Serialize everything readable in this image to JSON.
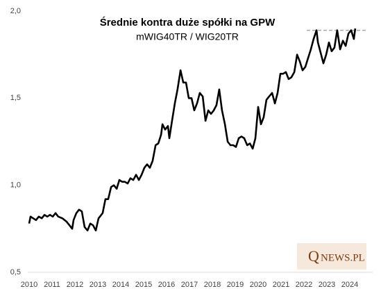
{
  "chart_data": {
    "type": "line",
    "title": "Średnie kontra duże spółki na GPW",
    "subtitle": "mWIG40TR / WIG20TR",
    "logo": {
      "initial": "Q",
      "rest": "NEWS.PL"
    },
    "xlim": [
      2010,
      2025
    ],
    "xticks": [
      2010,
      2011,
      2012,
      2013,
      2014,
      2015,
      2016,
      2017,
      2018,
      2019,
      2020,
      2021,
      2022,
      2023,
      2024
    ],
    "ylim": [
      0.5,
      2.0
    ],
    "yticks": [
      {
        "value": 0.5,
        "label": "0,5"
      },
      {
        "value": 1.0,
        "label": "1,0"
      },
      {
        "value": 1.5,
        "label": "1,5"
      },
      {
        "value": 2.0,
        "label": "2,0"
      }
    ],
    "reference_line": {
      "value": 1.89,
      "x": [
        2022.12,
        2024.73
      ],
      "color": "#a6a6a6"
    },
    "series": [
      {
        "name": "mWIG40TR / WIG20TR",
        "color": "#000000",
        "x": [
          2010.0,
          2010.06,
          2010.18,
          2010.3,
          2010.42,
          2010.55,
          2010.67,
          2010.79,
          2010.91,
          2011.03,
          2011.15,
          2011.27,
          2011.45,
          2011.64,
          2011.76,
          2011.88,
          2011.94,
          2012.06,
          2012.18,
          2012.3,
          2012.42,
          2012.55,
          2012.67,
          2012.79,
          2012.91,
          2013.03,
          2013.21,
          2013.33,
          2013.45,
          2013.58,
          2013.7,
          2013.82,
          2013.94,
          2014.06,
          2014.18,
          2014.3,
          2014.42,
          2014.55,
          2014.67,
          2014.79,
          2014.91,
          2015.03,
          2015.15,
          2015.27,
          2015.39,
          2015.52,
          2015.64,
          2015.76,
          2015.82,
          2015.94,
          2016.06,
          2016.12,
          2016.24,
          2016.36,
          2016.48,
          2016.61,
          2016.73,
          2016.85,
          2016.97,
          2017.09,
          2017.21,
          2017.33,
          2017.45,
          2017.58,
          2017.7,
          2017.82,
          2017.94,
          2018.06,
          2018.18,
          2018.3,
          2018.42,
          2018.55,
          2018.67,
          2018.79,
          2018.91,
          2019.03,
          2019.15,
          2019.27,
          2019.39,
          2019.52,
          2019.64,
          2019.76,
          2019.88,
          2020.0,
          2020.12,
          2020.24,
          2020.36,
          2020.48,
          2020.61,
          2020.73,
          2020.85,
          2020.97,
          2021.09,
          2021.21,
          2021.33,
          2021.45,
          2021.58,
          2021.7,
          2021.82,
          2021.94,
          2022.06,
          2022.18,
          2022.3,
          2022.42,
          2022.55,
          2022.61,
          2022.73,
          2022.85,
          2022.97,
          2023.09,
          2023.21,
          2023.33,
          2023.45,
          2023.58,
          2023.7,
          2023.82,
          2023.94,
          2024.06,
          2024.18,
          2024.24
        ],
        "values": [
          0.78,
          0.82,
          0.81,
          0.8,
          0.82,
          0.81,
          0.83,
          0.82,
          0.83,
          0.82,
          0.84,
          0.82,
          0.81,
          0.79,
          0.77,
          0.75,
          0.8,
          0.84,
          0.86,
          0.85,
          0.76,
          0.74,
          0.78,
          0.77,
          0.74,
          0.81,
          0.84,
          0.92,
          0.92,
          0.99,
          1.0,
          0.98,
          1.03,
          1.02,
          1.02,
          1.01,
          1.04,
          1.03,
          1.06,
          1.03,
          1.06,
          1.1,
          1.12,
          1.1,
          1.14,
          1.23,
          1.24,
          1.29,
          1.35,
          1.32,
          1.34,
          1.27,
          1.37,
          1.47,
          1.55,
          1.66,
          1.59,
          1.59,
          1.5,
          1.5,
          1.43,
          1.47,
          1.53,
          1.51,
          1.37,
          1.43,
          1.41,
          1.43,
          1.46,
          1.55,
          1.43,
          1.35,
          1.25,
          1.23,
          1.23,
          1.22,
          1.27,
          1.28,
          1.27,
          1.23,
          1.24,
          1.21,
          1.27,
          1.45,
          1.35,
          1.39,
          1.49,
          1.51,
          1.53,
          1.47,
          1.53,
          1.64,
          1.64,
          1.65,
          1.61,
          1.62,
          1.65,
          1.75,
          1.71,
          1.66,
          1.68,
          1.73,
          1.78,
          1.84,
          1.89,
          1.82,
          1.76,
          1.7,
          1.75,
          1.82,
          1.77,
          1.79,
          1.89,
          1.78,
          1.83,
          1.8,
          1.87,
          1.89,
          1.84,
          1.9
        ]
      }
    ]
  }
}
